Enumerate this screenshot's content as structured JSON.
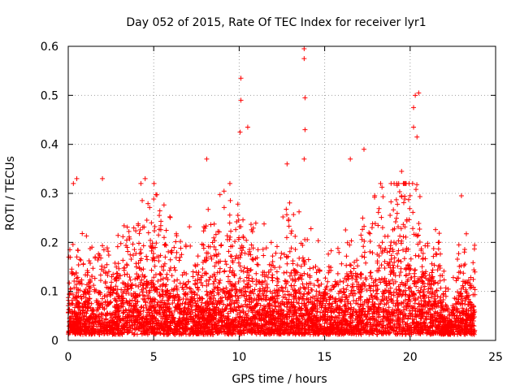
{
  "chart_data": {
    "type": "scatter",
    "title": "Day 052 of 2015, Rate Of TEC Index for receiver lyr1",
    "xlabel": "GPS time / hours",
    "ylabel": "ROTI / TECUs",
    "xlim": [
      0,
      25
    ],
    "ylim": [
      0,
      0.6
    ],
    "x_ticks": [
      0,
      5,
      10,
      15,
      20,
      25
    ],
    "x_tick_labels": [
      "0",
      "5",
      "10",
      "15",
      "20",
      "25"
    ],
    "y_ticks": [
      0,
      0.1,
      0.2,
      0.3,
      0.4,
      0.5,
      0.6
    ],
    "y_tick_labels": [
      "0",
      "0.1",
      "0.2",
      "0.3",
      "0.4",
      "0.5",
      "0.6"
    ],
    "grid": true,
    "marker": "+",
    "marker_color": "#ff0000",
    "series": [
      {
        "name": "ROTI",
        "x_range": [
          0,
          23.8
        ],
        "typical_range": [
          0.02,
          0.2
        ],
        "notable_points": [
          {
            "x": 0.3,
            "y": 0.32
          },
          {
            "x": 0.5,
            "y": 0.33
          },
          {
            "x": 2.0,
            "y": 0.33
          },
          {
            "x": 4.5,
            "y": 0.33
          },
          {
            "x": 8.1,
            "y": 0.37
          },
          {
            "x": 10.1,
            "y": 0.535
          },
          {
            "x": 10.1,
            "y": 0.49
          },
          {
            "x": 10.05,
            "y": 0.425
          },
          {
            "x": 10.5,
            "y": 0.435
          },
          {
            "x": 12.8,
            "y": 0.36
          },
          {
            "x": 13.8,
            "y": 0.595
          },
          {
            "x": 13.8,
            "y": 0.575
          },
          {
            "x": 13.85,
            "y": 0.495
          },
          {
            "x": 13.85,
            "y": 0.43
          },
          {
            "x": 13.8,
            "y": 0.37
          },
          {
            "x": 16.5,
            "y": 0.37
          },
          {
            "x": 17.3,
            "y": 0.39
          },
          {
            "x": 19.5,
            "y": 0.345
          },
          {
            "x": 20.3,
            "y": 0.5
          },
          {
            "x": 20.5,
            "y": 0.505
          },
          {
            "x": 20.2,
            "y": 0.475
          },
          {
            "x": 20.2,
            "y": 0.435
          },
          {
            "x": 20.4,
            "y": 0.415
          },
          {
            "x": 23.0,
            "y": 0.295
          }
        ]
      }
    ]
  }
}
